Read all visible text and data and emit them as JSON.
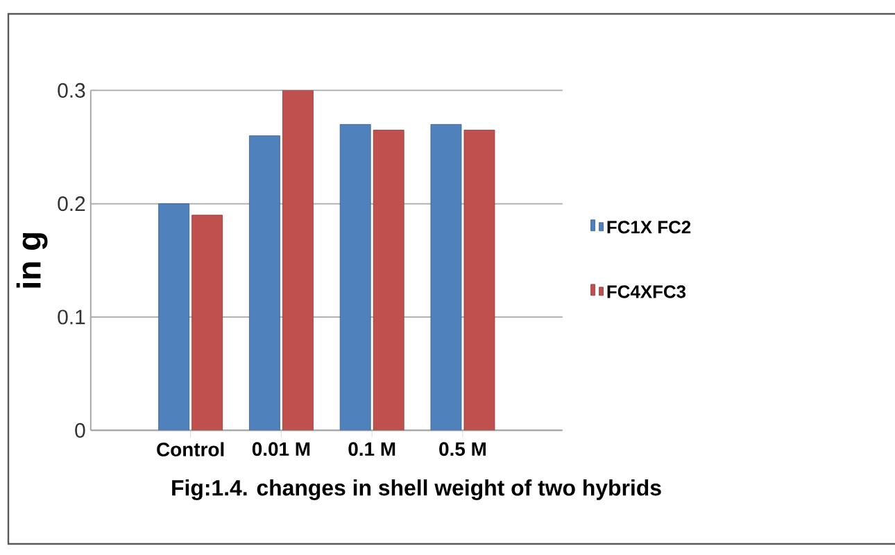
{
  "chart_data": {
    "type": "bar",
    "ylabel": "in g",
    "categories": [
      "Control",
      "0.01  M",
      "0.1 M",
      "0.5 M"
    ],
    "series": [
      {
        "name": "FC1X FC2",
        "color": "#4f81bd",
        "values": [
          0.2,
          0.26,
          0.27,
          0.27
        ]
      },
      {
        "name": "FC4XFC3",
        "color": "#c0504d",
        "values": [
          0.19,
          0.3,
          0.265,
          0.265
        ]
      }
    ],
    "ylim": [
      0,
      0.3
    ],
    "yticks": [
      0,
      0.1,
      0.2,
      0.3
    ],
    "grid": "y",
    "legend": "right",
    "annotations": [
      "Fig:1.4. changes in shell weight of two hybrids"
    ]
  }
}
